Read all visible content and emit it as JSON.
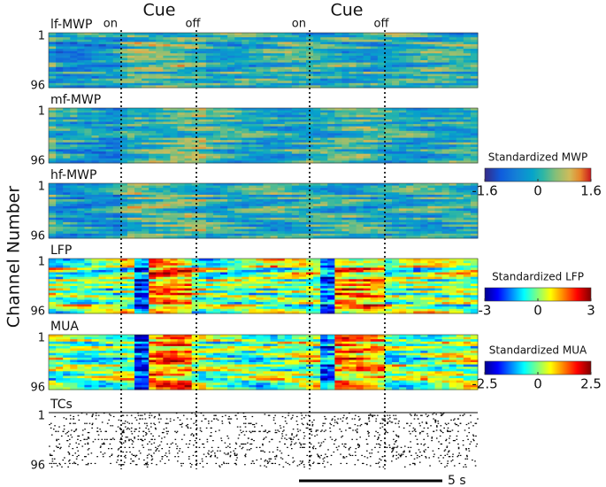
{
  "y_axis_label": "Channel Number",
  "channel_ticks": [
    1,
    96
  ],
  "cue_labels": [
    "Cue",
    "Cue"
  ],
  "markers": [
    "on",
    "off",
    "on",
    "off"
  ],
  "panels": [
    {
      "label": "lf-MWP"
    },
    {
      "label": "mf-MWP"
    },
    {
      "label": "hf-MWP"
    },
    {
      "label": "LFP"
    },
    {
      "label": "MUA"
    },
    {
      "label": "TCs"
    }
  ],
  "colorbars": [
    {
      "title": "Standardized MWP",
      "lim": [
        -1.6,
        1.6
      ],
      "ticks": [
        -1.6,
        0,
        1.6
      ]
    },
    {
      "title": "Standardized LFP",
      "lim": [
        -3,
        3
      ],
      "ticks": [
        -3,
        0,
        3
      ]
    },
    {
      "title": "Standardized MUA",
      "lim": [
        -2.5,
        2.5
      ],
      "ticks": [
        -2.5,
        0,
        2.5
      ]
    }
  ],
  "scale_bar": "5 s"
}
